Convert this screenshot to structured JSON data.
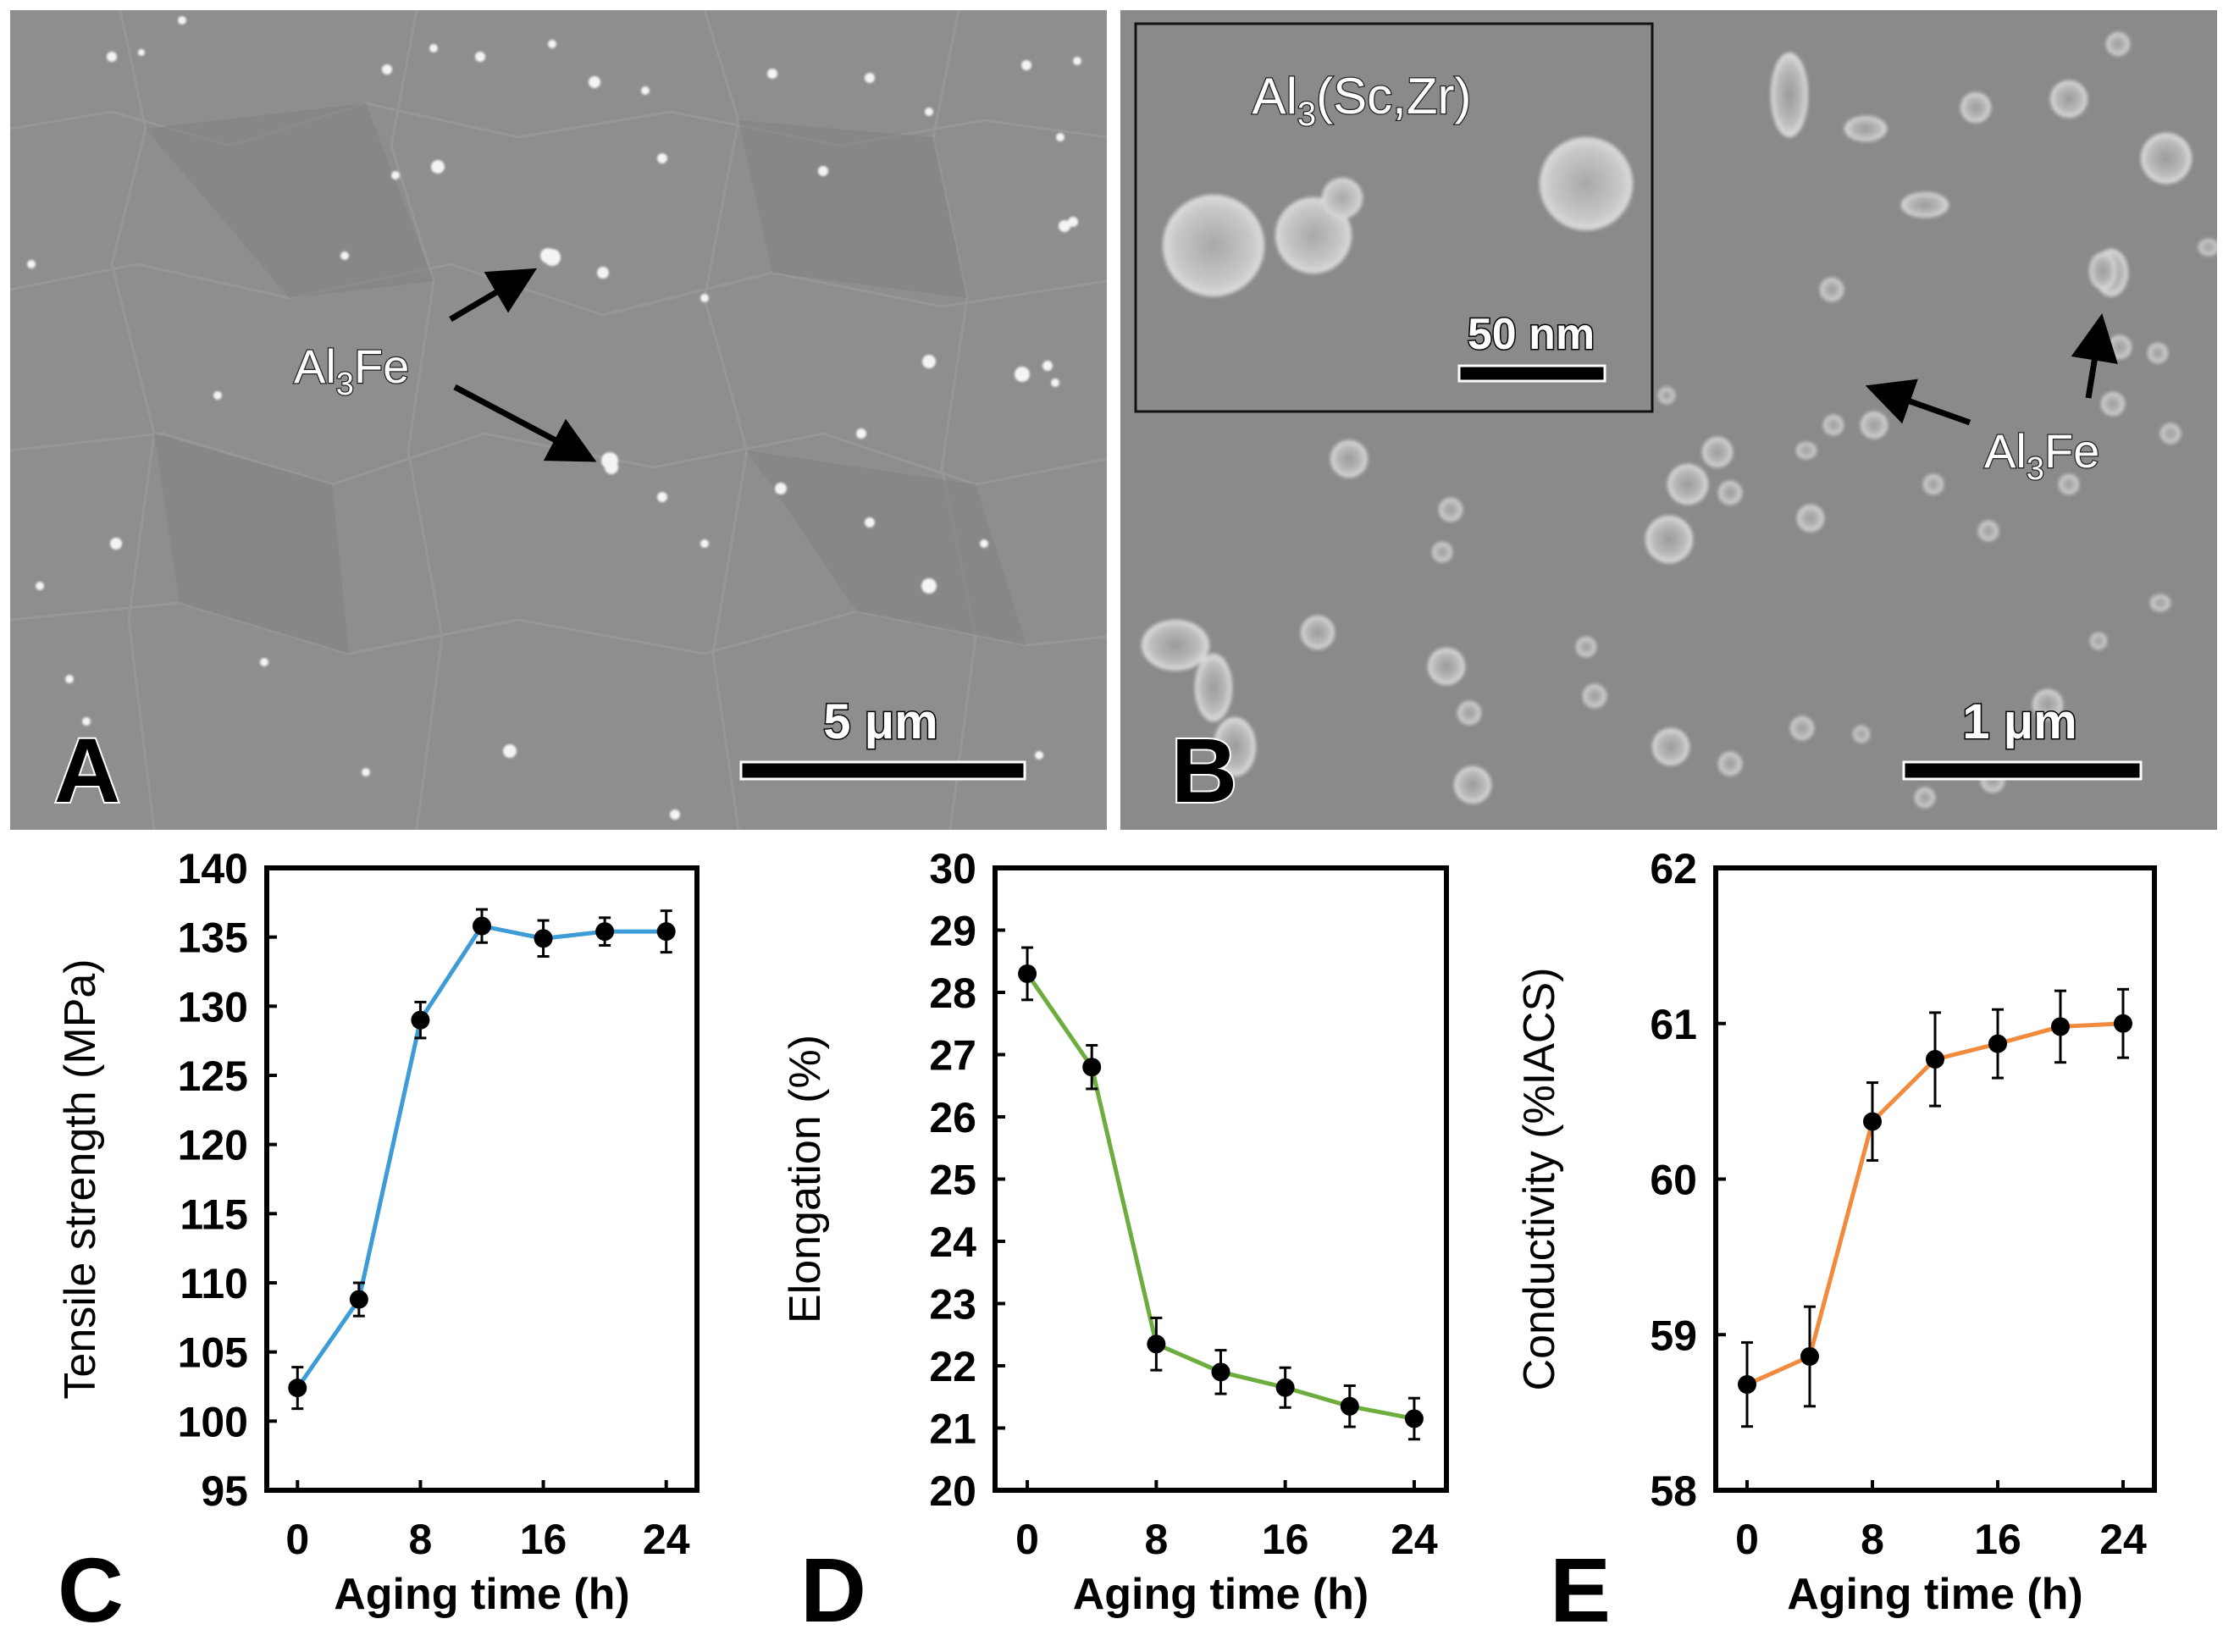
{
  "panels": {
    "a": {
      "letter": "A",
      "label": "Al3Fe",
      "label_base": "Al",
      "label_sub": "3",
      "label_tail": "Fe",
      "scale_bar": "5 μm"
    },
    "b": {
      "letter": "B",
      "inset_label": "Al3(Sc,Zr)",
      "inset_label_base": "Al",
      "inset_label_sub": "3",
      "inset_label_tail": "(Sc,Zr)",
      "inset_scale_bar": "50 nm",
      "label": "Al3Fe",
      "label_base": "Al",
      "label_sub": "3",
      "label_tail": "Fe",
      "scale_bar": "1 μm"
    }
  },
  "colors": {
    "tensile": "#3d9bd6",
    "elongation": "#6cad3d",
    "conductivity": "#f08a3c",
    "marker": "#000000"
  },
  "chart_data": [
    {
      "panel": "C",
      "type": "line",
      "xlabel": "Aging time (h)",
      "ylabel": "Tensile strength (MPa)",
      "x": [
        0,
        4,
        8,
        12,
        16,
        20,
        24
      ],
      "y": [
        102.4,
        108.8,
        129.0,
        135.8,
        134.9,
        135.4,
        135.4
      ],
      "yerr": [
        1.5,
        1.2,
        1.3,
        1.2,
        1.3,
        1.0,
        1.5
      ],
      "xlim": [
        -2,
        26
      ],
      "ylim": [
        95,
        140
      ],
      "xticks": [
        "0",
        "8",
        "16",
        "24"
      ],
      "xtick_values": [
        0,
        8,
        16,
        24
      ],
      "yticks": [
        "95",
        "100",
        "105",
        "110",
        "115",
        "120",
        "125",
        "130",
        "135",
        "140"
      ],
      "ytick_values": [
        95,
        100,
        105,
        110,
        115,
        120,
        125,
        130,
        135,
        140
      ],
      "color": "#3d9bd6"
    },
    {
      "panel": "D",
      "type": "line",
      "xlabel": "Aging time (h)",
      "ylabel": "Elongation (%)",
      "x": [
        0,
        4,
        8,
        12,
        16,
        20,
        24
      ],
      "y": [
        28.3,
        26.8,
        22.35,
        21.9,
        21.65,
        21.35,
        21.15
      ],
      "yerr": [
        0.42,
        0.35,
        0.42,
        0.35,
        0.32,
        0.33,
        0.33
      ],
      "xlim": [
        -2,
        26
      ],
      "ylim": [
        20,
        30
      ],
      "xticks": [
        "0",
        "8",
        "16",
        "24"
      ],
      "xtick_values": [
        0,
        8,
        16,
        24
      ],
      "yticks": [
        "20",
        "21",
        "22",
        "23",
        "24",
        "25",
        "26",
        "27",
        "28",
        "29",
        "30"
      ],
      "ytick_values": [
        20,
        21,
        22,
        23,
        24,
        25,
        26,
        27,
        28,
        29,
        30
      ],
      "color": "#6cad3d"
    },
    {
      "panel": "E",
      "type": "line",
      "xlabel": "Aging time (h)",
      "ylabel": "Conductivity (%IACS)",
      "x": [
        0,
        4,
        8,
        12,
        16,
        20,
        24
      ],
      "y": [
        58.68,
        58.86,
        60.37,
        60.77,
        60.87,
        60.98,
        61.0
      ],
      "yerr": [
        0.27,
        0.32,
        0.25,
        0.3,
        0.22,
        0.23,
        0.22
      ],
      "xlim": [
        -2,
        26
      ],
      "ylim": [
        58,
        62
      ],
      "xticks": [
        "0",
        "8",
        "16",
        "24"
      ],
      "xtick_values": [
        0,
        8,
        16,
        24
      ],
      "yticks": [
        "58",
        "59",
        "60",
        "61",
        "62"
      ],
      "ytick_values": [
        58,
        59,
        60,
        61,
        62
      ],
      "color": "#f08a3c"
    }
  ]
}
